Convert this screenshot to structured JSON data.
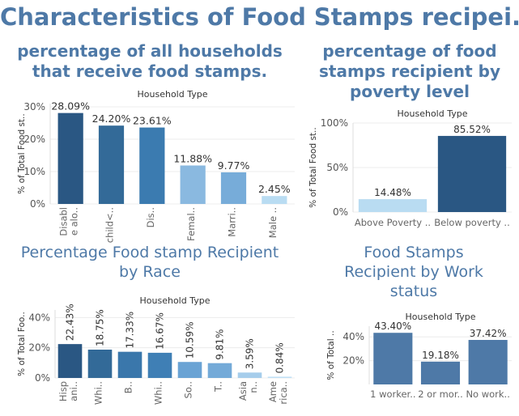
{
  "dashboard": {
    "title": "Characteristics of Food Stamps recipei.."
  },
  "panels": [
    {
      "title_lines": [
        "percentage of all households",
        "that receive food stamps."
      ]
    },
    {
      "title_lines": [
        "percentage of food",
        "stamps recipient by",
        "poverty level"
      ]
    },
    {
      "title_lines": [
        "Percentage Food stamp Recipient",
        "by Race"
      ]
    },
    {
      "title_lines": [
        "Food Stamps",
        "Recipient by Work",
        "status"
      ]
    }
  ],
  "chart_data": [
    {
      "type": "bar",
      "title": "Household Type",
      "ylabel": "% of Total Food st..",
      "ylim": [
        0,
        31
      ],
      "yticks": [
        {
          "v": 0,
          "t": "0%"
        },
        {
          "v": 10,
          "t": "10%"
        },
        {
          "v": 20,
          "t": "20%"
        },
        {
          "v": 30,
          "t": "30%"
        }
      ],
      "categories": [
        [
          "Disabl",
          "e alo.."
        ],
        [
          "child<.."
        ],
        [
          "Dis.."
        ],
        [
          "Femal.."
        ],
        [
          "Marri.."
        ],
        [
          "Male .."
        ]
      ],
      "values": [
        28.09,
        24.2,
        23.61,
        11.88,
        9.77,
        2.45
      ],
      "labels": [
        "28.09%",
        "24.20%",
        "23.61%",
        "11.88%",
        "9.77%",
        "2.45%"
      ],
      "colors": [
        "#2a5783",
        "#336a98",
        "#3b7bb0",
        "#8ab9e0",
        "#77acd9",
        "#b9dcf2"
      ],
      "label_rotate": false,
      "tick_rotate": true,
      "grid": true
    },
    {
      "type": "bar",
      "title": "Household Type",
      "ylabel": "% of Total Food st..",
      "ylim": [
        0,
        100
      ],
      "yticks": [
        {
          "v": 0,
          "t": "0%"
        },
        {
          "v": 50,
          "t": "50%"
        },
        {
          "v": 100,
          "t": "100%"
        }
      ],
      "categories": [
        [
          "Above Poverty .."
        ],
        [
          "Below poverty .."
        ]
      ],
      "values": [
        14.48,
        85.52
      ],
      "labels": [
        "14.48%",
        "85.52%"
      ],
      "colors": [
        "#b9dcf2",
        "#2a5783"
      ],
      "label_rotate": false,
      "tick_rotate": false,
      "grid": true
    },
    {
      "type": "bar",
      "title": "Household Type",
      "ylabel": "% of Total Foo..",
      "ylim": [
        0,
        45
      ],
      "yticks": [
        {
          "v": 0,
          "t": "0%"
        },
        {
          "v": 20,
          "t": "20%"
        },
        {
          "v": 40,
          "t": "40%"
        }
      ],
      "categories": [
        [
          "Hisp",
          "ani.."
        ],
        [
          "Whi.."
        ],
        [
          "B.."
        ],
        [
          "Whi.."
        ],
        [
          "So.."
        ],
        [
          "T.."
        ],
        [
          "Asia",
          "n.."
        ],
        [
          "Ame",
          "rica.."
        ]
      ],
      "values": [
        22.43,
        18.75,
        17.33,
        16.67,
        10.59,
        9.81,
        3.59,
        0.84
      ],
      "labels": [
        "22.43%",
        "18.75%",
        "17.33%",
        "16.67%",
        "10.59%",
        "9.81%",
        "3.59%",
        "0.84%"
      ],
      "colors": [
        "#2a5783",
        "#336a98",
        "#3a77ab",
        "#3f7fb5",
        "#6aa3d4",
        "#74aad8",
        "#a6cdeb",
        "#c0e0f5"
      ],
      "label_rotate": true,
      "tick_rotate": true,
      "grid": true
    },
    {
      "type": "bar",
      "title": "Household Type",
      "ylabel": "% of Total ..",
      "ylim": [
        0,
        49
      ],
      "yticks": [
        {
          "v": 20,
          "t": "20%"
        },
        {
          "v": 40,
          "t": "40%"
        }
      ],
      "categories": [
        [
          "1 worker.."
        ],
        [
          "2 or mor.."
        ],
        [
          "No work.."
        ]
      ],
      "values": [
        43.4,
        19.18,
        37.42
      ],
      "labels": [
        "43.40%",
        "19.18%",
        "37.42%"
      ],
      "colors": [
        "#4e79a7",
        "#4e79a7",
        "#4e79a7"
      ],
      "label_rotate": false,
      "tick_rotate": false,
      "grid": true
    }
  ]
}
